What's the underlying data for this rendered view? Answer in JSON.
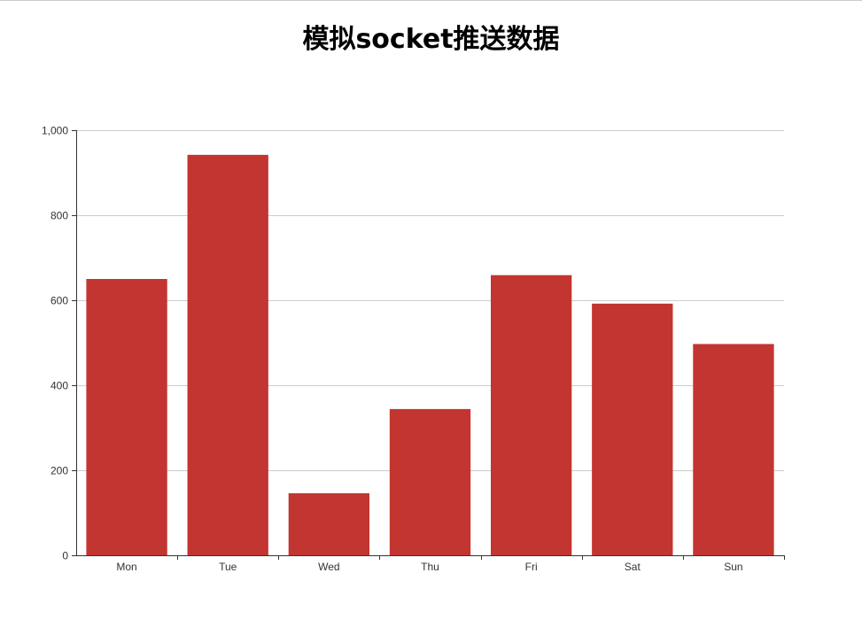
{
  "chart_data": {
    "type": "bar",
    "title": "模拟socket推送数据",
    "categories": [
      "Mon",
      "Tue",
      "Wed",
      "Thu",
      "Fri",
      "Sat",
      "Sun"
    ],
    "series": [
      {
        "values": [
          650,
          942,
          146,
          344,
          659,
          592,
          497
        ],
        "color": "#c23531"
      }
    ],
    "ylim": [
      0,
      1000
    ],
    "yticks": [
      0,
      200,
      400,
      600,
      800,
      1000
    ],
    "ytick_labels": [
      "0",
      "200",
      "400",
      "600",
      "800",
      "1,000"
    ],
    "grid": true,
    "gridline_color": "#cccccc",
    "axis_color": "#333333"
  }
}
